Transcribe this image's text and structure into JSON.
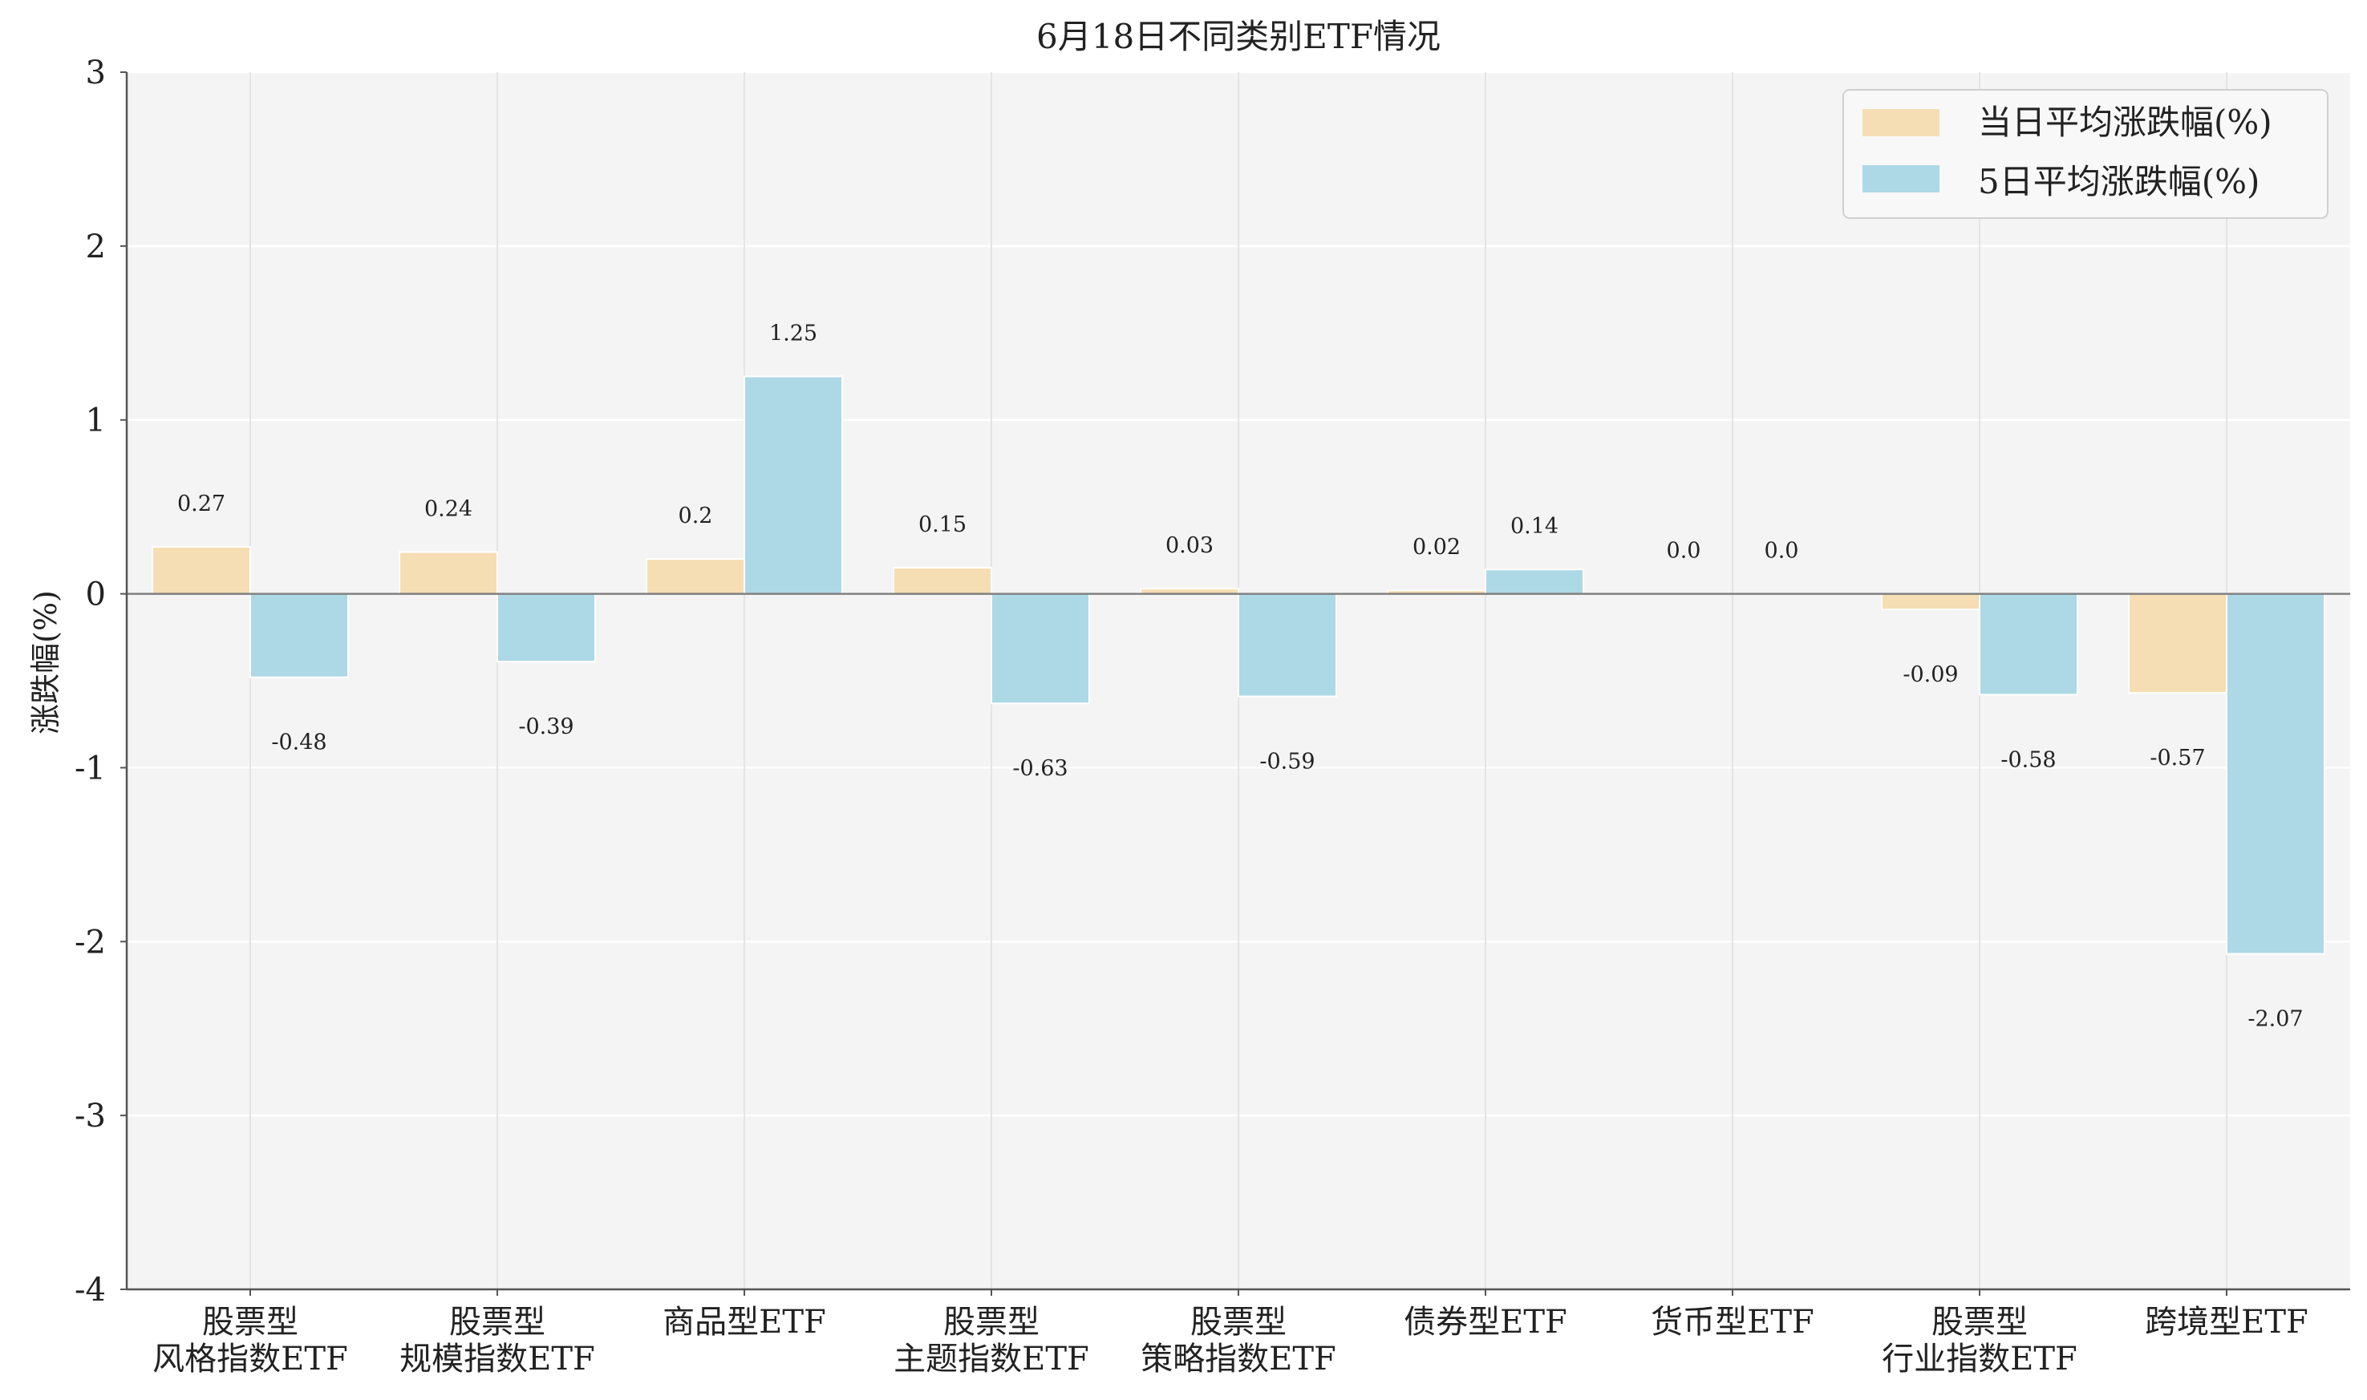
{
  "chart_data": {
    "type": "bar",
    "title": "6月18日不同类别ETF情况",
    "xlabel": "",
    "ylabel": "涨跌幅(%)",
    "ylim": [
      -4,
      3
    ],
    "yticks": [
      "-4",
      "-3",
      "-2",
      "-1",
      "0",
      "1",
      "2",
      "3"
    ],
    "grid": true,
    "legend_position": "top-right",
    "categories": [
      [
        "股票型",
        "风格指数ETF"
      ],
      [
        "股票型",
        "规模指数ETF"
      ],
      [
        "商品型ETF"
      ],
      [
        "股票型",
        "主题指数ETF"
      ],
      [
        "股票型",
        "策略指数ETF"
      ],
      [
        "债券型ETF"
      ],
      [
        "货币型ETF"
      ],
      [
        "股票型",
        "行业指数ETF"
      ],
      [
        "跨境型ETF"
      ]
    ],
    "series": [
      {
        "name": "当日平均涨跌幅(%)",
        "color": "#f5deb3",
        "values": [
          0.27,
          0.24,
          0.2,
          0.15,
          0.03,
          0.02,
          0.0,
          -0.09,
          -0.57
        ],
        "labels": [
          "0.27",
          "0.24",
          "0.2",
          "0.15",
          "0.03",
          "0.02",
          "0.0",
          "-0.09",
          "-0.57"
        ]
      },
      {
        "name": "5日平均涨跌幅(%)",
        "color": "#add8e6",
        "values": [
          -0.48,
          -0.39,
          1.25,
          -0.63,
          -0.59,
          0.14,
          0.0,
          -0.58,
          -2.07
        ],
        "labels": [
          "-0.48",
          "-0.39",
          "1.25",
          "-0.63",
          "-0.59",
          "0.14",
          "0.0",
          "-0.58",
          "-2.07"
        ]
      }
    ]
  }
}
